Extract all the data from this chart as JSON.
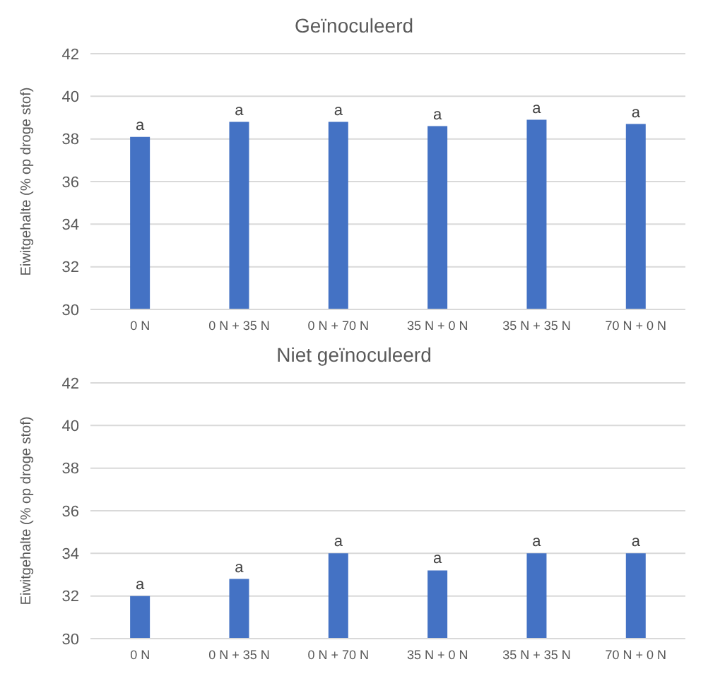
{
  "chart_data": [
    {
      "type": "bar",
      "title": "Geïnoculeerd",
      "ylabel": "Eiwitgehalte (% op droge stof)",
      "categories": [
        "0 N",
        "0 N + 35 N",
        "0 N + 70 N",
        "35 N + 0 N",
        "35 N + 35 N",
        "70 N + 0 N"
      ],
      "values": [
        38.1,
        38.8,
        38.8,
        38.6,
        38.9,
        38.7
      ],
      "value_labels": [
        "a",
        "a",
        "a",
        "a",
        "a",
        "a"
      ],
      "color": "#4472c4",
      "ylim": [
        30,
        42
      ],
      "yticks": [
        30,
        32,
        34,
        36,
        38,
        40,
        42
      ],
      "grid": "y"
    },
    {
      "type": "bar",
      "title": "Niet geïnoculeerd",
      "ylabel": "Eiwitgehalte (% op droge stof)",
      "categories": [
        "0 N",
        "0 N + 35 N",
        "0 N + 70 N",
        "35 N + 0 N",
        "35 N + 35 N",
        "70 N + 0 N"
      ],
      "values": [
        32.0,
        32.8,
        34.0,
        33.2,
        34.0,
        34.0
      ],
      "value_labels": [
        "a",
        "a",
        "a",
        "a",
        "a",
        "a"
      ],
      "color": "#4472c4",
      "ylim": [
        30,
        42
      ],
      "yticks": [
        30,
        32,
        34,
        36,
        38,
        40,
        42
      ],
      "grid": "y"
    }
  ]
}
